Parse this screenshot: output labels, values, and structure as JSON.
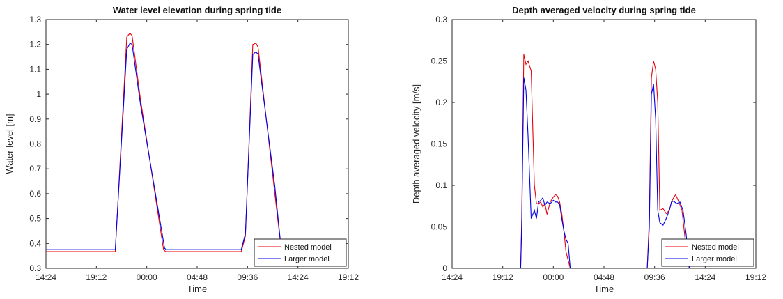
{
  "chart_data": [
    {
      "type": "line",
      "title": "Water level elevation during spring tide",
      "xlabel": "Time",
      "ylabel": "Water level [m]",
      "xlim": [
        "14:24",
        "19:12 (+1 day)"
      ],
      "ylim": [
        0.3,
        1.3
      ],
      "x_ticks": [
        "14:24",
        "19:12",
        "00:00",
        "04:48",
        "09:36",
        "14:24",
        "19:12"
      ],
      "y_ticks": [
        "0.3",
        "0.4",
        "0.5",
        "0.6",
        "0.7",
        "0.8",
        "0.9",
        "1",
        "1.1",
        "1.2",
        "1.3"
      ],
      "grid": false,
      "legend_position": "bottom-right",
      "x_unit": "hours after 14:24",
      "series": [
        {
          "name": "Nested model",
          "color": "#e8000b",
          "x": [
            0,
            6.6,
            7.7,
            8.0,
            8.2,
            9.0,
            11.2,
            11.4,
            12.0,
            18.6,
            19.0,
            19.7,
            20.0,
            20.2,
            21.8,
            22.4
          ],
          "y": [
            0.367,
            0.367,
            1.23,
            1.245,
            1.235,
            0.98,
            0.375,
            0.367,
            0.367,
            0.367,
            0.43,
            1.2,
            1.205,
            1.19,
            0.6,
            0.38
          ]
        },
        {
          "name": "Larger model",
          "color": "#0000e6",
          "x": [
            0,
            6.6,
            7.7,
            8.0,
            8.2,
            9.0,
            11.3,
            11.5,
            12.0,
            18.6,
            19.0,
            19.7,
            20.0,
            20.2,
            21.8,
            22.4
          ],
          "y": [
            0.375,
            0.375,
            1.18,
            1.205,
            1.2,
            0.96,
            0.38,
            0.375,
            0.375,
            0.375,
            0.44,
            1.16,
            1.17,
            1.16,
            0.63,
            0.38
          ]
        }
      ]
    },
    {
      "type": "line",
      "title": "Depth averaged velocity during spring tide",
      "xlabel": "Time",
      "ylabel": "Depth averaged velocity [m/s]",
      "xlim": [
        "14:24",
        "19:12 (+1 day)"
      ],
      "ylim": [
        0,
        0.3
      ],
      "x_ticks": [
        "14:24",
        "19:12",
        "00:00",
        "04:48",
        "09:36",
        "14:24",
        "19:12"
      ],
      "y_ticks": [
        "0",
        "0.05",
        "0.1",
        "0.15",
        "0.2",
        "0.25",
        "0.3"
      ],
      "grid": false,
      "legend_position": "bottom-right",
      "x_unit": "hours after 14:24",
      "series": [
        {
          "name": "Nested model",
          "color": "#e8000b",
          "x": [
            0,
            6.5,
            6.6,
            6.8,
            7.0,
            7.2,
            7.5,
            7.8,
            8.0,
            8.2,
            8.4,
            8.6,
            8.8,
            9.0,
            9.3,
            9.6,
            9.8,
            10.0,
            10.2,
            10.4,
            10.6,
            10.8,
            11.0,
            11.2,
            11.4,
            18.5,
            18.7,
            18.9,
            19.1,
            19.3,
            19.5,
            19.7,
            20.0,
            20.3,
            20.6,
            20.8,
            21.0,
            21.2,
            21.5,
            21.8,
            22.1,
            22.3,
            22.5
          ],
          "y": [
            0,
            0,
            0.06,
            0.258,
            0.246,
            0.25,
            0.238,
            0.1,
            0.078,
            0.078,
            0.08,
            0.074,
            0.078,
            0.065,
            0.08,
            0.086,
            0.089,
            0.087,
            0.08,
            0.066,
            0.045,
            0.02,
            0.01,
            0.0,
            0.0,
            0.0,
            0.06,
            0.23,
            0.25,
            0.24,
            0.2,
            0.07,
            0.072,
            0.066,
            0.07,
            0.08,
            0.085,
            0.089,
            0.08,
            0.07,
            0.035,
            0.01,
            0.0
          ]
        },
        {
          "name": "Larger model",
          "color": "#0000e6",
          "x": [
            0,
            6.5,
            6.6,
            6.8,
            7.0,
            7.2,
            7.5,
            7.8,
            8.0,
            8.2,
            8.4,
            8.6,
            8.8,
            9.0,
            9.3,
            9.6,
            9.8,
            10.0,
            10.2,
            10.4,
            10.6,
            10.8,
            11.0,
            11.2,
            11.5,
            18.5,
            18.7,
            18.9,
            19.1,
            19.3,
            19.5,
            19.7,
            20.0,
            20.3,
            20.6,
            20.8,
            21.0,
            21.3,
            21.6,
            21.9,
            22.2,
            22.5,
            23.5
          ],
          "y": [
            0,
            0,
            0.05,
            0.23,
            0.215,
            0.16,
            0.06,
            0.07,
            0.06,
            0.08,
            0.082,
            0.085,
            0.076,
            0.08,
            0.078,
            0.082,
            0.08,
            0.08,
            0.077,
            0.06,
            0.045,
            0.035,
            0.03,
            0.0,
            0.0,
            0.0,
            0.05,
            0.21,
            0.222,
            0.18,
            0.07,
            0.055,
            0.052,
            0.06,
            0.07,
            0.08,
            0.081,
            0.078,
            0.08,
            0.07,
            0.04,
            0.0,
            0.0
          ]
        }
      ]
    }
  ]
}
